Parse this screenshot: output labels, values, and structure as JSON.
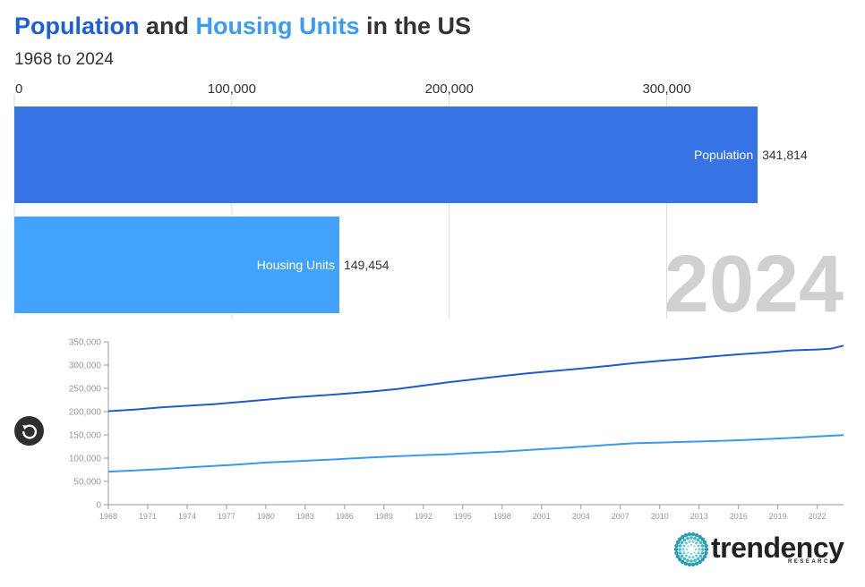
{
  "title": {
    "part1": "Population",
    "part2": " and ",
    "part3": "Housing Units",
    "part4": " in the US"
  },
  "subtitle": "1968 to 2024",
  "year_label": "2024",
  "replay": {
    "icon": "replay-icon"
  },
  "logo": {
    "word": "trendency",
    "sub": "RESEARCH"
  },
  "colors": {
    "population": "#3674e6",
    "housing": "#41a3fb",
    "pop_line": "#1f5cc9",
    "hu_line": "#3b98ee"
  },
  "chart_data": [
    {
      "type": "bar",
      "title": "Population and Housing Units in the US",
      "categories": [
        "Population",
        "Housing Units"
      ],
      "values": [
        341814,
        149454
      ],
      "value_labels": [
        "341,814",
        "149,454"
      ],
      "xlim": [
        0,
        350000
      ],
      "ticks": [
        0,
        100000,
        200000,
        300000
      ],
      "tick_labels": [
        "0",
        "100,000",
        "200,000",
        "300,000"
      ],
      "grid": true
    },
    {
      "type": "line",
      "x": [
        1968,
        1970,
        1972,
        1974,
        1976,
        1978,
        1980,
        1982,
        1984,
        1986,
        1988,
        1990,
        1992,
        1994,
        1996,
        1998,
        2000,
        2002,
        2004,
        2006,
        2008,
        2010,
        2012,
        2014,
        2016,
        2018,
        2020,
        2022,
        2023,
        2024
      ],
      "series": [
        {
          "name": "Population",
          "values": [
            201000,
            204500,
            209000,
            212500,
            216000,
            220500,
            225500,
            230500,
            234500,
            238500,
            243000,
            248500,
            256000,
            263500,
            270000,
            276500,
            282500,
            287500,
            292500,
            298000,
            304000,
            309000,
            313500,
            318500,
            323000,
            327000,
            331500,
            333500,
            335000,
            341814
          ]
        },
        {
          "name": "Housing Units",
          "values": [
            71000,
            73500,
            76500,
            80000,
            83000,
            86500,
            90500,
            93000,
            95500,
            98500,
            101500,
            104000,
            106500,
            108500,
            111500,
            114000,
            117500,
            121000,
            124500,
            128500,
            132000,
            133500,
            135000,
            136500,
            138500,
            141000,
            143500,
            146500,
            148000,
            149454
          ]
        }
      ],
      "ylim": [
        0,
        350000
      ],
      "yticks": [
        0,
        50000,
        100000,
        150000,
        200000,
        250000,
        300000,
        350000
      ],
      "ytick_labels": [
        "0",
        "50,000",
        "100,000",
        "150,000",
        "200,000",
        "250,000",
        "300,000",
        "350,000"
      ],
      "xticks": [
        1968,
        1971,
        1974,
        1977,
        1980,
        1983,
        1986,
        1989,
        1992,
        1995,
        1998,
        2001,
        2004,
        2007,
        2010,
        2013,
        2016,
        2019,
        2022
      ],
      "xlim": [
        1968,
        2024
      ],
      "grid": false
    }
  ]
}
